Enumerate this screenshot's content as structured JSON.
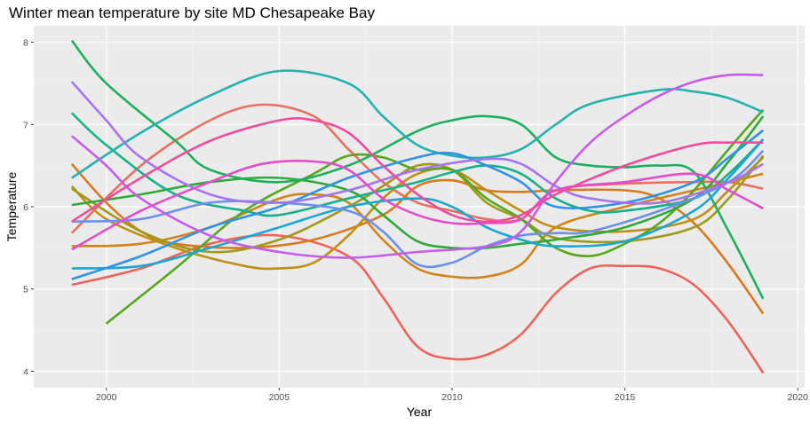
{
  "chart_data": {
    "type": "line",
    "title": "Winter mean temperature by site MD Chesapeake Bay",
    "xlabel": "Year",
    "ylabel": "Temperature",
    "xlim": [
      1997.9,
      2020.2
    ],
    "ylim": [
      3.8,
      8.2
    ],
    "x_ticks": [
      2000,
      2005,
      2010,
      2015,
      2020
    ],
    "x_tick_labels": [
      "2000",
      "2005",
      "2010",
      "2015",
      "2020"
    ],
    "y_ticks": [
      4,
      5,
      6,
      7,
      8
    ],
    "y_tick_labels": [
      "4",
      "5",
      "6",
      "7",
      "8"
    ],
    "grid": true,
    "legend": "none",
    "series": [
      {
        "color": "#F0635A",
        "points": [
          [
            1999,
            5.05
          ],
          [
            2001,
            5.25
          ],
          [
            2003,
            5.55
          ],
          [
            2005,
            5.65
          ],
          [
            2007,
            5.4
          ],
          [
            2008,
            4.9
          ],
          [
            2009,
            4.3
          ],
          [
            2010,
            4.15
          ],
          [
            2011,
            4.2
          ],
          [
            2012,
            4.45
          ],
          [
            2013,
            4.95
          ],
          [
            2014,
            5.25
          ],
          [
            2015,
            5.28
          ],
          [
            2016,
            5.25
          ],
          [
            2017,
            5.05
          ],
          [
            2018,
            4.6
          ],
          [
            2019,
            3.98
          ]
        ]
      },
      {
        "color": "#E8705E",
        "points": [
          [
            1999,
            5.68
          ],
          [
            2001,
            6.5
          ],
          [
            2003,
            7.05
          ],
          [
            2004.5,
            7.24
          ],
          [
            2006,
            7.1
          ],
          [
            2007,
            6.7
          ],
          [
            2008,
            6.3
          ],
          [
            2009,
            6.05
          ],
          [
            2010,
            5.95
          ],
          [
            2011,
            5.85
          ],
          [
            2012,
            5.85
          ],
          [
            2013,
            6.2
          ],
          [
            2015,
            6.28
          ],
          [
            2017,
            6.3
          ],
          [
            2018,
            6.3
          ],
          [
            2019,
            6.22
          ]
        ]
      },
      {
        "color": "#D8791D",
        "points": [
          [
            1999,
            6.52
          ],
          [
            2000,
            6.05
          ],
          [
            2001,
            5.7
          ],
          [
            2002,
            5.55
          ],
          [
            2004,
            5.5
          ],
          [
            2006,
            5.6
          ],
          [
            2008,
            5.9
          ],
          [
            2009,
            6.25
          ],
          [
            2010,
            6.32
          ],
          [
            2011,
            6.2
          ],
          [
            2012,
            6.18
          ],
          [
            2013,
            6.2
          ],
          [
            2015,
            6.2
          ],
          [
            2016,
            6.1
          ],
          [
            2017,
            5.8
          ],
          [
            2018,
            5.3
          ],
          [
            2019,
            4.7
          ]
        ]
      },
      {
        "color": "#D3831A",
        "points": [
          [
            1999,
            5.52
          ],
          [
            2001,
            5.55
          ],
          [
            2003,
            5.75
          ],
          [
            2005,
            6.1
          ],
          [
            2006,
            6.15
          ],
          [
            2007,
            6.05
          ],
          [
            2008,
            5.6
          ],
          [
            2009,
            5.25
          ],
          [
            2010,
            5.15
          ],
          [
            2011,
            5.15
          ],
          [
            2012,
            5.3
          ],
          [
            2013,
            5.75
          ],
          [
            2015,
            6.0
          ],
          [
            2017,
            6.2
          ],
          [
            2018,
            6.3
          ],
          [
            2019,
            6.4
          ]
        ]
      },
      {
        "color": "#C08F13",
        "points": [
          [
            1999,
            6.25
          ],
          [
            2000,
            5.85
          ],
          [
            2002,
            5.5
          ],
          [
            2004,
            5.28
          ],
          [
            2005,
            5.25
          ],
          [
            2006,
            5.32
          ],
          [
            2007,
            5.65
          ],
          [
            2008,
            6.1
          ],
          [
            2009,
            6.4
          ],
          [
            2010,
            6.45
          ],
          [
            2011,
            6.2
          ],
          [
            2012,
            5.95
          ],
          [
            2013,
            5.75
          ],
          [
            2015,
            5.7
          ],
          [
            2017,
            5.85
          ],
          [
            2018,
            6.2
          ],
          [
            2019,
            6.6
          ]
        ]
      },
      {
        "color": "#A09A1C",
        "points": [
          [
            1999,
            6.22
          ],
          [
            2001,
            5.7
          ],
          [
            2003,
            5.45
          ],
          [
            2005,
            5.6
          ],
          [
            2007,
            6.0
          ],
          [
            2008,
            6.25
          ],
          [
            2009,
            6.5
          ],
          [
            2010,
            6.45
          ],
          [
            2011,
            6.05
          ],
          [
            2012,
            5.85
          ],
          [
            2013,
            5.62
          ],
          [
            2015,
            5.58
          ],
          [
            2017,
            5.75
          ],
          [
            2018,
            6.1
          ],
          [
            2019,
            6.62
          ]
        ]
      },
      {
        "color": "#55A81E",
        "points": [
          [
            2000,
            4.58
          ],
          [
            2002,
            5.25
          ],
          [
            2004,
            5.95
          ],
          [
            2006,
            6.4
          ],
          [
            2007,
            6.62
          ],
          [
            2008,
            6.6
          ],
          [
            2009,
            6.45
          ],
          [
            2010,
            6.45
          ],
          [
            2011,
            6.1
          ],
          [
            2012,
            5.85
          ],
          [
            2013,
            5.5
          ],
          [
            2014,
            5.4
          ],
          [
            2015,
            5.55
          ],
          [
            2016,
            5.8
          ],
          [
            2017,
            6.2
          ],
          [
            2018,
            6.7
          ],
          [
            2019,
            7.18
          ]
        ]
      },
      {
        "color": "#2DAA3A",
        "points": [
          [
            1999,
            6.02
          ],
          [
            2001,
            6.15
          ],
          [
            2003,
            6.3
          ],
          [
            2005,
            6.35
          ],
          [
            2007,
            6.2
          ],
          [
            2008,
            5.9
          ],
          [
            2009,
            5.58
          ],
          [
            2010,
            5.5
          ],
          [
            2011,
            5.5
          ],
          [
            2012,
            5.55
          ],
          [
            2013,
            5.6
          ],
          [
            2015,
            5.75
          ],
          [
            2017,
            6.1
          ],
          [
            2018,
            6.55
          ],
          [
            2019,
            7.1
          ]
        ]
      },
      {
        "color": "#1DAF5C",
        "points": [
          [
            1999,
            8.02
          ],
          [
            2000,
            7.5
          ],
          [
            2002,
            6.8
          ],
          [
            2003,
            6.45
          ],
          [
            2005,
            6.3
          ],
          [
            2007,
            6.5
          ],
          [
            2009,
            6.92
          ],
          [
            2010,
            7.05
          ],
          [
            2011,
            7.1
          ],
          [
            2012,
            7.0
          ],
          [
            2013,
            6.6
          ],
          [
            2014,
            6.5
          ],
          [
            2015,
            6.48
          ],
          [
            2016,
            6.5
          ],
          [
            2017,
            6.42
          ],
          [
            2018,
            5.7
          ],
          [
            2019,
            4.88
          ]
        ]
      },
      {
        "color": "#17B08C",
        "points": [
          [
            1999,
            7.14
          ],
          [
            2000,
            6.75
          ],
          [
            2002,
            6.15
          ],
          [
            2004,
            5.95
          ],
          [
            2005,
            5.9
          ],
          [
            2007,
            6.1
          ],
          [
            2009,
            6.3
          ],
          [
            2010,
            6.42
          ],
          [
            2011,
            6.5
          ],
          [
            2012,
            6.4
          ],
          [
            2013,
            6.1
          ],
          [
            2014,
            5.95
          ],
          [
            2015,
            5.95
          ],
          [
            2017,
            6.1
          ],
          [
            2018,
            6.4
          ],
          [
            2019,
            6.82
          ]
        ]
      },
      {
        "color": "#23B2AF",
        "points": [
          [
            1999,
            6.35
          ],
          [
            2001,
            6.9
          ],
          [
            2003,
            7.35
          ],
          [
            2005,
            7.65
          ],
          [
            2007,
            7.5
          ],
          [
            2008,
            7.1
          ],
          [
            2009,
            6.75
          ],
          [
            2010,
            6.62
          ],
          [
            2011,
            6.6
          ],
          [
            2012,
            6.7
          ],
          [
            2013,
            7.0
          ],
          [
            2014,
            7.25
          ],
          [
            2016,
            7.42
          ],
          [
            2017,
            7.4
          ],
          [
            2018,
            7.32
          ],
          [
            2019,
            7.15
          ]
        ]
      },
      {
        "color": "#1AA6D4",
        "points": [
          [
            1999,
            5.25
          ],
          [
            2001,
            5.28
          ],
          [
            2003,
            5.5
          ],
          [
            2005,
            5.75
          ],
          [
            2007,
            6.0
          ],
          [
            2009,
            6.1
          ],
          [
            2010,
            6.0
          ],
          [
            2011,
            5.75
          ],
          [
            2012,
            5.6
          ],
          [
            2013,
            5.52
          ],
          [
            2015,
            5.58
          ],
          [
            2017,
            5.95
          ],
          [
            2018,
            6.35
          ],
          [
            2019,
            6.82
          ]
        ]
      },
      {
        "color": "#2E93E8",
        "points": [
          [
            1999,
            5.12
          ],
          [
            2001,
            5.4
          ],
          [
            2003,
            5.75
          ],
          [
            2005,
            6.0
          ],
          [
            2007,
            6.35
          ],
          [
            2009,
            6.6
          ],
          [
            2010,
            6.65
          ],
          [
            2011,
            6.5
          ],
          [
            2012,
            6.3
          ],
          [
            2013,
            6.0
          ],
          [
            2015,
            6.05
          ],
          [
            2017,
            6.3
          ],
          [
            2018,
            6.6
          ],
          [
            2019,
            6.93
          ]
        ]
      },
      {
        "color": "#6D8FEF",
        "points": [
          [
            1999,
            5.82
          ],
          [
            2001,
            5.85
          ],
          [
            2003,
            6.05
          ],
          [
            2005,
            6.05
          ],
          [
            2007,
            5.95
          ],
          [
            2008,
            5.7
          ],
          [
            2009,
            5.3
          ],
          [
            2010,
            5.32
          ],
          [
            2011,
            5.52
          ],
          [
            2012,
            5.65
          ],
          [
            2013,
            5.68
          ],
          [
            2014,
            5.7
          ],
          [
            2016,
            5.95
          ],
          [
            2018,
            6.3
          ],
          [
            2019,
            6.68
          ]
        ]
      },
      {
        "color": "#A574F0",
        "points": [
          [
            1999,
            7.52
          ],
          [
            2000,
            7.05
          ],
          [
            2001,
            6.6
          ],
          [
            2003,
            6.15
          ],
          [
            2005,
            6.05
          ],
          [
            2007,
            6.2
          ],
          [
            2009,
            6.45
          ],
          [
            2011,
            6.58
          ],
          [
            2012,
            6.52
          ],
          [
            2013,
            6.25
          ],
          [
            2014,
            6.1
          ],
          [
            2016,
            6.05
          ],
          [
            2018,
            6.3
          ],
          [
            2019,
            6.52
          ]
        ]
      },
      {
        "color": "#C65BEE",
        "points": [
          [
            1999,
            6.86
          ],
          [
            2000,
            6.5
          ],
          [
            2001,
            6.1
          ],
          [
            2003,
            5.65
          ],
          [
            2005,
            5.45
          ],
          [
            2007,
            5.38
          ],
          [
            2009,
            5.45
          ],
          [
            2011,
            5.52
          ],
          [
            2012,
            5.7
          ],
          [
            2013,
            6.3
          ],
          [
            2014,
            6.78
          ],
          [
            2015,
            7.1
          ],
          [
            2016,
            7.35
          ],
          [
            2017,
            7.52
          ],
          [
            2018,
            7.6
          ],
          [
            2019,
            7.6
          ]
        ]
      },
      {
        "color": "#E34DC9",
        "points": [
          [
            1999,
            5.48
          ],
          [
            2001,
            5.95
          ],
          [
            2003,
            6.3
          ],
          [
            2004.5,
            6.52
          ],
          [
            2006,
            6.55
          ],
          [
            2007,
            6.45
          ],
          [
            2008,
            6.1
          ],
          [
            2009,
            5.9
          ],
          [
            2010,
            5.8
          ],
          [
            2011,
            5.8
          ],
          [
            2012,
            5.85
          ],
          [
            2013,
            6.2
          ],
          [
            2015,
            6.3
          ],
          [
            2017,
            6.4
          ],
          [
            2018,
            6.2
          ],
          [
            2019,
            5.98
          ]
        ]
      },
      {
        "color": "#F24B9E",
        "points": [
          [
            1999,
            5.82
          ],
          [
            2001,
            6.35
          ],
          [
            2003,
            6.8
          ],
          [
            2005,
            7.05
          ],
          [
            2006,
            7.05
          ],
          [
            2007,
            6.9
          ],
          [
            2008,
            6.5
          ],
          [
            2009,
            6.15
          ],
          [
            2010,
            5.9
          ],
          [
            2011,
            5.82
          ],
          [
            2012,
            5.9
          ],
          [
            2013,
            6.15
          ],
          [
            2015,
            6.5
          ],
          [
            2017,
            6.75
          ],
          [
            2018,
            6.78
          ],
          [
            2019,
            6.78
          ]
        ]
      }
    ]
  }
}
